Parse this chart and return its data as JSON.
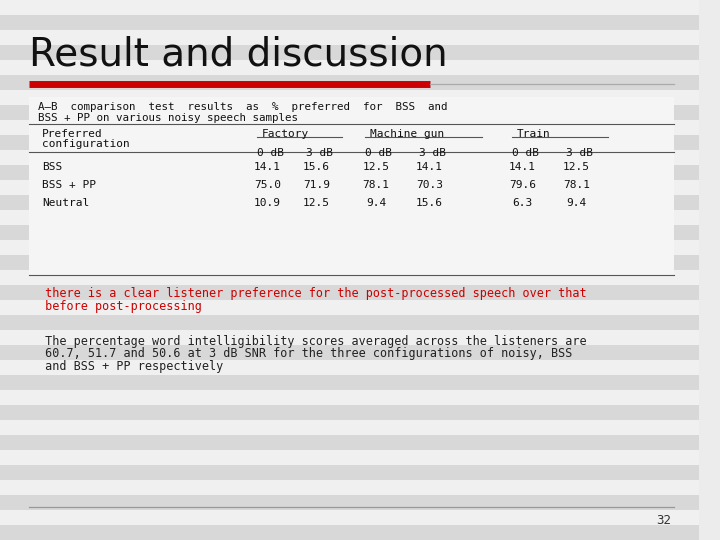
{
  "title": "Result and discussion",
  "title_fontsize": 28,
  "background_color": "#ececec",
  "red_line_color": "#cc0000",
  "gray_line_color": "#aaaaaa",
  "table_caption_line1": "A–B  comparison  test  results  as  %  preferred  for  BSS  and",
  "table_caption_line2": "BSS + PP on various noisy speech samples",
  "row_labels": [
    "BSS",
    "BSS + PP",
    "Neutral"
  ],
  "table_data": [
    [
      "14.1",
      "15.6",
      "12.5",
      "14.1",
      "14.1",
      "12.5"
    ],
    [
      "75.0",
      "71.9",
      "78.1",
      "70.3",
      "79.6",
      "78.1"
    ],
    [
      "10.9",
      "12.5",
      "9.4",
      "15.6",
      "6.3",
      "9.4"
    ]
  ],
  "highlight_text_line1": " there is a clear listener preference for the post-processed speech over that",
  "highlight_text_line2": " before post-processing",
  "highlight_color": "#cc0000",
  "body_text_line1": " The percentage word intelligibility scores averaged across the listeners are",
  "body_text_line2": " 60.7, 51.7 and 50.6 at 3 dB SNR for the three configurations of noisy, BSS",
  "body_text_line3": " and BSS + PP respectively",
  "body_color": "#222222",
  "page_number": "32",
  "bottom_line_color": "#999999",
  "table_line_color": "#555555",
  "stripe_color": "#d8d8d8",
  "stripe_light": "#f0f0f0"
}
